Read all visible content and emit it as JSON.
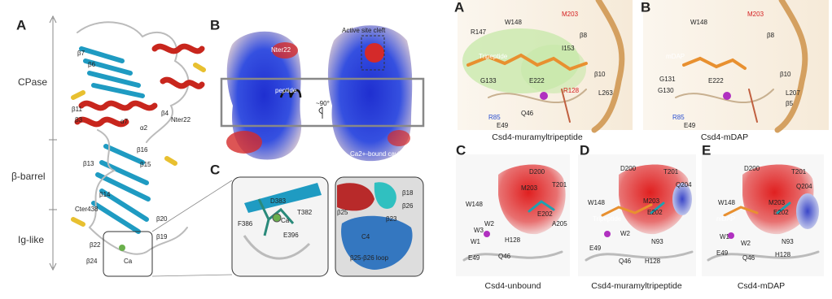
{
  "left_figure": {
    "A": {
      "letter": "A",
      "domains": [
        "CPase",
        "β-barrel",
        "Ig-like"
      ],
      "labels": [
        "β7",
        "β6",
        "β11",
        "β3",
        "α7",
        "α2",
        "β4",
        "Nter22",
        "β16",
        "β15",
        "β13",
        "β14",
        "Cter438",
        "β20",
        "β19",
        "β22",
        "Ca",
        "β24"
      ]
    },
    "B": {
      "letter": "B",
      "labels": [
        "Nter22",
        "peptide",
        "Active site cleft",
        "~90°",
        "Ca2+-bound cavity"
      ]
    },
    "C": {
      "letter": "C",
      "labels": [
        "D383",
        "Ca",
        "T382",
        "F386",
        "E396",
        "β25",
        "β18",
        "β26",
        "β23",
        "C4",
        "β25-β26 loop"
      ]
    }
  },
  "right_figure": {
    "panels": [
      {
        "letter": "A",
        "caption": "Csd4-muramyltripeptide",
        "labels": [
          "R147",
          "W148",
          "M203",
          "β8",
          "Tripeptide",
          "I153",
          "G133",
          "E222",
          "β10",
          "L263",
          "R128",
          "R85",
          "Q46",
          "E49"
        ]
      },
      {
        "letter": "B",
        "caption": "Csd4-mDAP",
        "labels": [
          "W148",
          "M203",
          "β8",
          "mDAP",
          "β10",
          "G131",
          "G130",
          "E222",
          "L207",
          "β5",
          "R85",
          "E49"
        ]
      },
      {
        "letter": "C",
        "caption": "Csd4-unbound",
        "labels": [
          "D200",
          "M203",
          "T201",
          "W148",
          "E202",
          "A205",
          "W3",
          "W2",
          "W1",
          "H128",
          "E49",
          "Q46"
        ]
      },
      {
        "letter": "D",
        "caption": "Csd4-muramyltripeptide",
        "labels": [
          "D200",
          "T201",
          "W148",
          "M203",
          "Q204",
          "Tripeptide",
          "E202",
          "W2",
          "N93",
          "E49",
          "Q46",
          "H128"
        ]
      },
      {
        "letter": "E",
        "caption": "Csd4-mDAP",
        "labels": [
          "D200",
          "T201",
          "W148",
          "M203",
          "Q204",
          "mDAP",
          "E202",
          "W1",
          "W2",
          "N93",
          "E49",
          "Q46",
          "H128"
        ]
      }
    ]
  }
}
